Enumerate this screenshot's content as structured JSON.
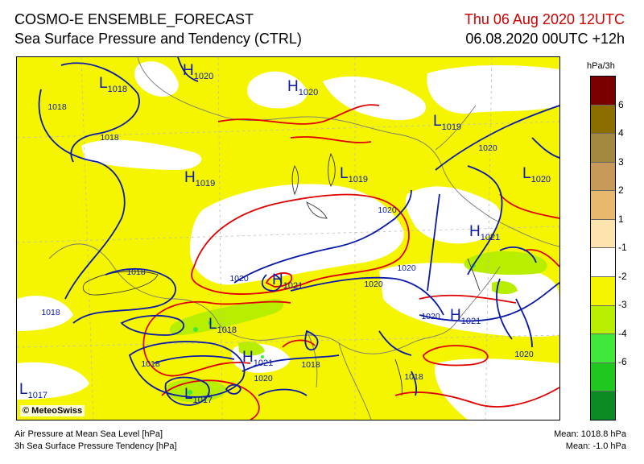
{
  "header": {
    "title_line1": "COSMO-E ENSEMBLE_FORECAST",
    "title_line2": "Sea Surface Pressure and Tendency (CTRL)",
    "valid_time": "Thu 06 Aug 2020 12UTC",
    "run_info": "06.08.2020 00UTC +12h"
  },
  "map": {
    "copyright": "© MeteoSwiss",
    "isobar_labels": [
      "1018",
      "1018",
      "1018",
      "1018",
      "1018",
      "1018",
      "1020",
      "1020",
      "1020",
      "1020",
      "1020",
      "1020",
      "1020",
      "1018",
      "1020"
    ],
    "centers": [
      {
        "letter": "H",
        "value": "1020"
      },
      {
        "letter": "L",
        "value": "1018"
      },
      {
        "letter": "H",
        "value": "1020"
      },
      {
        "letter": "L",
        "value": "1019"
      },
      {
        "letter": "H",
        "value": "1019"
      },
      {
        "letter": "L",
        "value": "1019"
      },
      {
        "letter": "L",
        "value": "1020"
      },
      {
        "letter": "H",
        "value": "1021"
      },
      {
        "letter": "H",
        "value": "1021"
      },
      {
        "letter": "H",
        "value": "1021"
      },
      {
        "letter": "L",
        "value": "1018"
      },
      {
        "letter": "H",
        "value": "1021"
      },
      {
        "letter": "L",
        "value": "1017"
      },
      {
        "letter": "L",
        "value": "1017"
      }
    ],
    "colors": {
      "yellow": "#f5f500",
      "isobar": "#0b1aa8",
      "tendency_contour": "#e00000",
      "border": "#777777",
      "lake": "#333333",
      "grid": "#bbbbbb"
    }
  },
  "legend": {
    "unit": "hPa/3h",
    "ticks": [
      "6",
      "4",
      "3",
      "2",
      "1",
      "-1",
      "-2",
      "-3",
      "-4",
      "-6"
    ],
    "colors": [
      "#7a0000",
      "#8c6d00",
      "#a38840",
      "#c79a5a",
      "#e7b86e",
      "#fde3ad",
      "#ffffff",
      "#f5f500",
      "#b8ee00",
      "#3fe83a",
      "#1fc71f",
      "#0c8a24"
    ]
  },
  "footer": {
    "line1": "Air Pressure at Mean Sea Level [hPa]",
    "line2": "3h Sea Surface Pressure Tendency [hPa]",
    "mean_pressure": "Mean: 1018.8 hPa",
    "mean_tendency": "Mean:   -1.0 hPa"
  }
}
